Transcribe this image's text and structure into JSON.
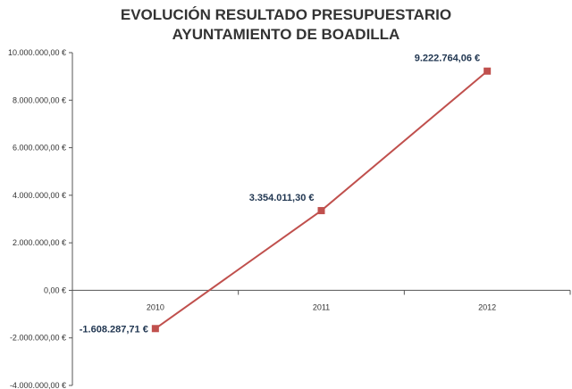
{
  "chart_data": {
    "type": "line",
    "title_lines": [
      "EVOLUCIÓN RESULTADO PRESUPUESTARIO",
      "AYUNTAMIENTO DE BOADILLA"
    ],
    "categories": [
      "2010",
      "2011",
      "2012"
    ],
    "series": [
      {
        "values": [
          -1608287.71,
          3354011.3,
          9222764.06
        ],
        "data_labels": [
          "-1.608.287,71 €",
          "3.354.011,30 €",
          "9.222.764,06 €"
        ],
        "color": "#c0504d"
      }
    ],
    "yticks": [
      10000000,
      8000000,
      6000000,
      4000000,
      2000000,
      0,
      -2000000,
      -4000000
    ],
    "ytick_labels": [
      "10.000.000,00 €",
      "8.000.000,00 €",
      "6.000.000,00 €",
      "4.000.000,00 €",
      "2.000.000,00 €",
      "0,00 €",
      "-2.000.000,00 €",
      "-4.000.000,00 €"
    ],
    "ylim": [
      -4000000,
      10000000
    ],
    "grid": false,
    "legend": "none",
    "colors": {
      "line": "#c0504d",
      "marker": "#c0504d",
      "label": "#1f3550",
      "axis": "#555555"
    }
  }
}
